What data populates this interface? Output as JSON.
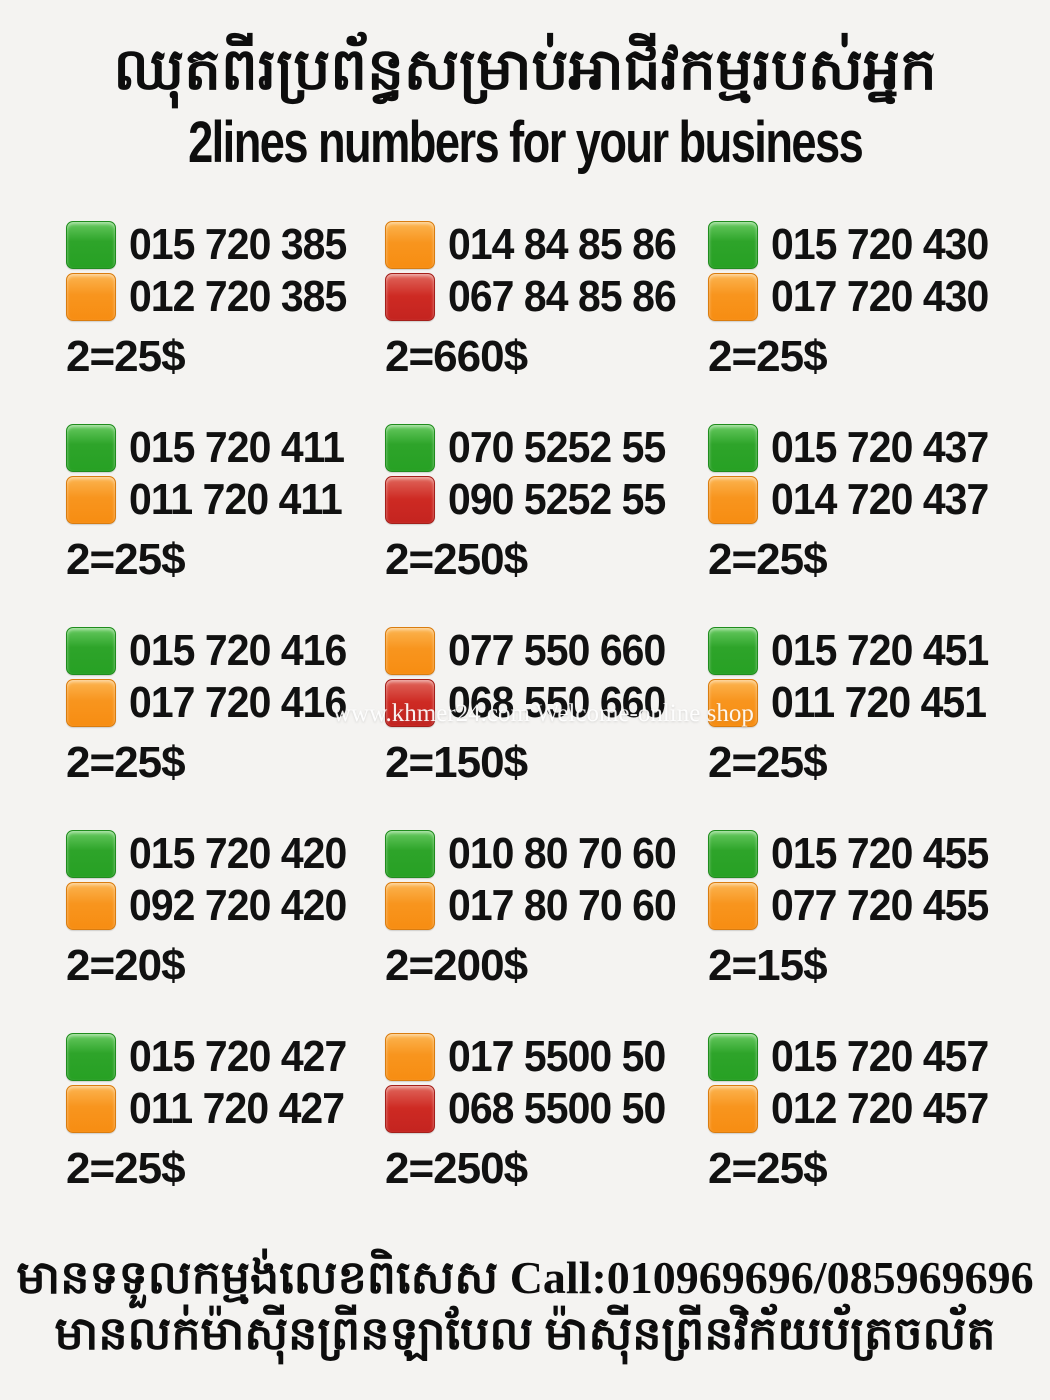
{
  "header": {
    "title_khmer": "ឈុតពីរប្រព័ន្ធសម្រាប់អាជីវកម្មរបស់អ្នក",
    "subtitle": "2lines numbers for your business"
  },
  "colors": {
    "green": "#2ea42a",
    "orange": "#f8951e",
    "red": "#ce2a23",
    "background": "#f4f3f1",
    "text": "#111111"
  },
  "legend_note": "colored squares mark SIM line type: green / orange / red",
  "watermark": {
    "text": "www.khmer24.com Welcome-online shop"
  },
  "grid": {
    "cells": [
      {
        "line1": {
          "color": "green",
          "number": "015 720 385"
        },
        "line2": {
          "color": "orange",
          "number": "012 720 385"
        },
        "price": "2=25$"
      },
      {
        "line1": {
          "color": "orange",
          "number": "014 84 85 86"
        },
        "line2": {
          "color": "red",
          "number": "067 84 85 86"
        },
        "price": "2=660$"
      },
      {
        "line1": {
          "color": "green",
          "number": "015 720 430"
        },
        "line2": {
          "color": "orange",
          "number": "017 720 430"
        },
        "price": "2=25$"
      },
      {
        "line1": {
          "color": "green",
          "number": "015 720 411"
        },
        "line2": {
          "color": "orange",
          "number": "011 720 411"
        },
        "price": "2=25$"
      },
      {
        "line1": {
          "color": "green",
          "number": "070 5252 55"
        },
        "line2": {
          "color": "red",
          "number": "090 5252 55"
        },
        "price": "2=250$"
      },
      {
        "line1": {
          "color": "green",
          "number": "015 720 437"
        },
        "line2": {
          "color": "orange",
          "number": "014 720 437"
        },
        "price": "2=25$"
      },
      {
        "line1": {
          "color": "green",
          "number": "015 720 416"
        },
        "line2": {
          "color": "orange",
          "number": "017 720 416"
        },
        "price": "2=25$"
      },
      {
        "line1": {
          "color": "orange",
          "number": "077 550 660"
        },
        "line2": {
          "color": "red",
          "number": "068 550 660"
        },
        "price": "2=150$"
      },
      {
        "line1": {
          "color": "green",
          "number": "015 720 451"
        },
        "line2": {
          "color": "orange",
          "number": "011 720 451"
        },
        "price": "2=25$"
      },
      {
        "line1": {
          "color": "green",
          "number": "015 720 420"
        },
        "line2": {
          "color": "orange",
          "number": "092 720 420"
        },
        "price": "2=20$"
      },
      {
        "line1": {
          "color": "green",
          "number": "010 80 70 60"
        },
        "line2": {
          "color": "orange",
          "number": "017 80 70 60"
        },
        "price": "2=200$"
      },
      {
        "line1": {
          "color": "green",
          "number": "015 720 455"
        },
        "line2": {
          "color": "orange",
          "number": "077 720 455"
        },
        "price": "2=15$"
      },
      {
        "line1": {
          "color": "green",
          "number": "015 720 427"
        },
        "line2": {
          "color": "orange",
          "number": "011 720 427"
        },
        "price": "2=25$"
      },
      {
        "line1": {
          "color": "orange",
          "number": "017 5500 50"
        },
        "line2": {
          "color": "red",
          "number": "068 5500 50"
        },
        "price": "2=250$"
      },
      {
        "line1": {
          "color": "green",
          "number": "015 720 457"
        },
        "line2": {
          "color": "orange",
          "number": "012 720 457"
        },
        "price": "2=25$"
      }
    ]
  },
  "footer": {
    "line1": "មានទទួលកម្មង់លេខពិសេស Call:010969696/085969696",
    "line2": "មានលក់ម៉ាស៊ីនព្រីនឡាបែល ម៉ាស៊ីនព្រីនវិក័យប័ត្រចល័ត"
  }
}
